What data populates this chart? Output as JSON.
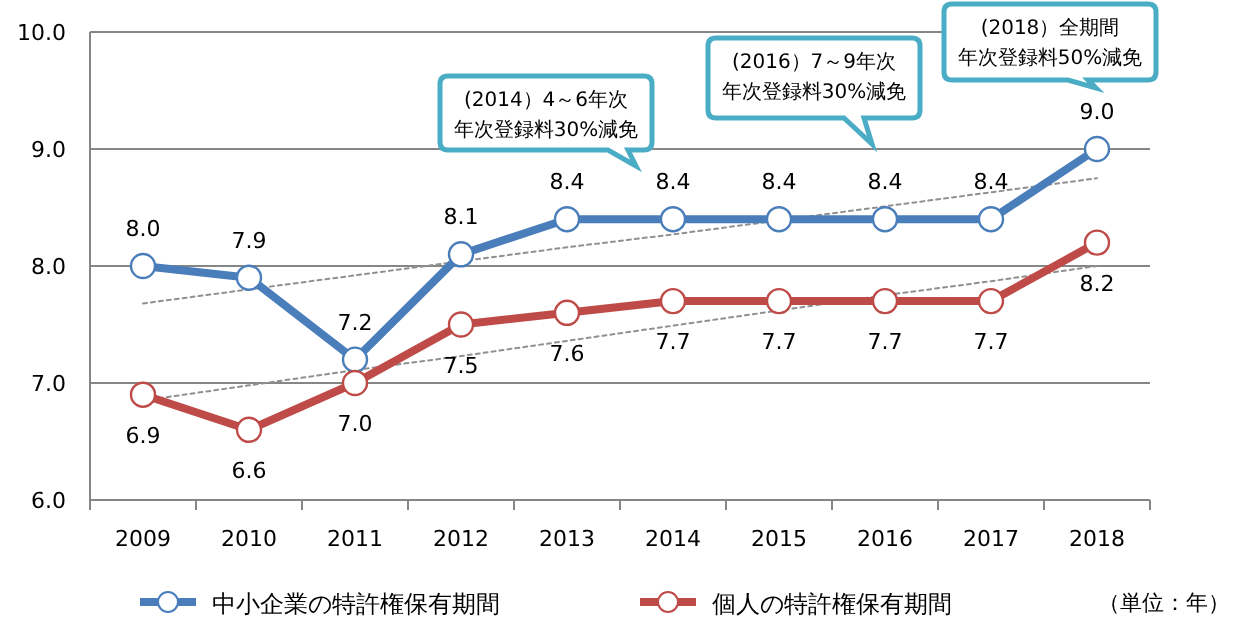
{
  "chart_data": {
    "type": "line",
    "categories": [
      "2009",
      "2010",
      "2011",
      "2012",
      "2013",
      "2014",
      "2015",
      "2016",
      "2017",
      "2018"
    ],
    "series": [
      {
        "name": "中小企業の特許権保有期間",
        "color": "#4a7ebb",
        "values": [
          8.0,
          7.9,
          7.2,
          8.1,
          8.4,
          8.4,
          8.4,
          8.4,
          8.4,
          9.0
        ],
        "value_labels": [
          "8.0",
          "7.9",
          "7.2",
          "8.1",
          "8.4",
          "8.4",
          "8.4",
          "8.4",
          "8.4",
          "9.0"
        ]
      },
      {
        "name": "個人の特許権保有期間",
        "color": "#be4b48",
        "values": [
          6.9,
          6.6,
          7.0,
          7.5,
          7.6,
          7.7,
          7.7,
          7.7,
          7.7,
          8.2
        ],
        "value_labels": [
          "6.9",
          "6.6",
          "7.0",
          "7.5",
          "7.6",
          "7.7",
          "7.7",
          "7.7",
          "7.7",
          "8.2"
        ]
      },
      {
        "type": "line",
        "color": "#909090",
        "line_style": "dotted",
        "marker": "none",
        "values": [
          7.68,
          7.8,
          7.92,
          8.04,
          8.16,
          8.27,
          8.39,
          8.51,
          8.63,
          8.75
        ]
      },
      {
        "type": "line",
        "color": "#909090",
        "line_style": "dotted",
        "marker": "none",
        "values": [
          6.85,
          6.98,
          7.11,
          7.23,
          7.36,
          7.49,
          7.62,
          7.75,
          7.87,
          8.0
        ]
      }
    ],
    "ylim": [
      6.0,
      10.0
    ],
    "yticks": [
      {
        "value": 6,
        "label": "6.0"
      },
      {
        "value": 7,
        "label": "7.0"
      },
      {
        "value": 8,
        "label": "8.0"
      },
      {
        "value": 9,
        "label": "9.0"
      },
      {
        "value": 10,
        "label": "10.0"
      }
    ],
    "grid": "y",
    "legend": "bottom",
    "marker": "circle",
    "line_style": "solid",
    "annotations": [
      "(2014）4～6年次年次登録料30%減免",
      "(2016）7～9年次年次登録料30%減免",
      "(2018）全期間年次登録料50%減免",
      "（単位：年）"
    ]
  }
}
